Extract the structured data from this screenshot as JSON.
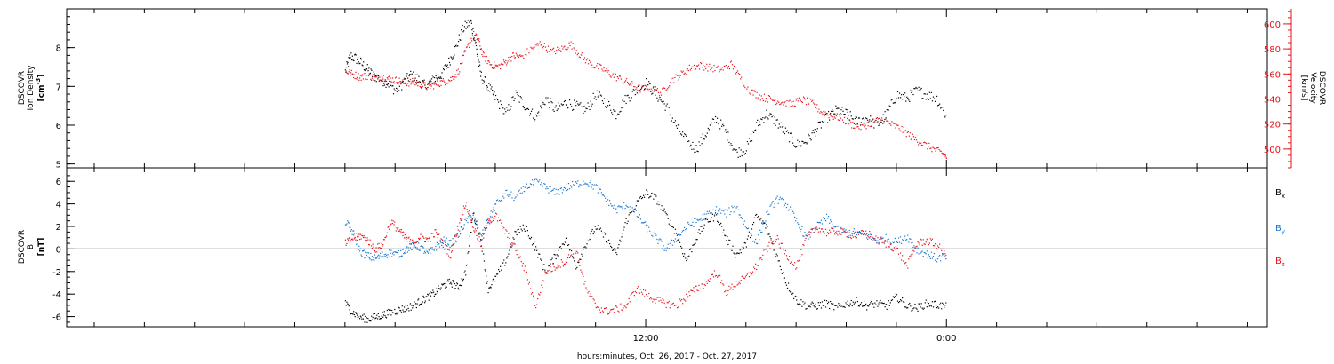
{
  "chart_data": [
    {
      "type": "scatter",
      "panel": "plasma",
      "ylabel_left": {
        "l1": "DSCOVR",
        "l2": "Ion Density",
        "unit": "[cm",
        "unit_sup": "-3",
        "unit_end": "]"
      },
      "ylabel_right": {
        "l1": "DSCOVR",
        "l2": "Velocity",
        "unit": "[km/s]"
      },
      "ylim_left": [
        4.9,
        9.0
      ],
      "yticks_left": [
        5,
        6,
        7,
        8
      ],
      "ylim_right": [
        485,
        612
      ],
      "yticks_right": [
        500,
        520,
        540,
        560,
        580,
        600
      ],
      "colors": {
        "density": "#000000",
        "velocity": "#e8131b"
      },
      "series": [
        {
          "key": "density",
          "axis": "left",
          "x": [
            -24,
            -23.8,
            -23.5,
            -23.2,
            -22.9,
            -22.6,
            -22.3,
            -22,
            -21.7,
            -21.4,
            -21.1,
            -20.8,
            -20.5,
            -20.2,
            -19.9,
            -19.6,
            -19.3,
            -19,
            -18.8,
            -18.6,
            -18.3,
            -18,
            -17.6,
            -17.2,
            -16.8,
            -16.4,
            -16,
            -15.6,
            -15.2,
            -14.8,
            -14.4,
            -14,
            -13.6,
            -13.2,
            -12.8,
            -12.4,
            -12,
            -11.6,
            -11.2,
            -10.8,
            -10.4,
            -10,
            -9.6,
            -9.2,
            -8.8,
            -8.4,
            -8,
            -7.6,
            -7.2,
            -6.8,
            -6.4,
            -6,
            -5.6,
            -5.2,
            -4.8,
            -4.4,
            -4,
            -3.6,
            -3.2,
            -2.8,
            -2.4,
            -2,
            -1.6,
            -1.2,
            -0.8,
            -0.4,
            0
          ],
          "y": [
            7.4,
            7.8,
            7.7,
            7.5,
            7.3,
            7.2,
            7.1,
            6.9,
            7.1,
            7.3,
            7.2,
            7.0,
            7.2,
            7.3,
            7.6,
            8.0,
            8.5,
            8.7,
            8.1,
            7.3,
            7.0,
            6.7,
            6.3,
            6.8,
            6.5,
            6.2,
            6.7,
            6.4,
            6.6,
            6.5,
            6.4,
            6.8,
            6.6,
            6.3,
            6.7,
            6.9,
            7.1,
            6.8,
            6.5,
            6.0,
            5.6,
            5.4,
            5.8,
            6.2,
            5.8,
            5.3,
            5.4,
            6.0,
            6.3,
            6.1,
            5.8,
            5.5,
            5.6,
            5.9,
            6.2,
            6.4,
            6.3,
            6.1,
            6.2,
            6.0,
            6.3,
            6.8,
            6.7,
            6.9,
            6.8,
            6.7,
            6.2
          ]
        },
        {
          "key": "velocity",
          "axis": "right",
          "x": [
            -24,
            -23.7,
            -23.4,
            -23.1,
            -22.8,
            -22.5,
            -22.2,
            -21.9,
            -21.6,
            -21.3,
            -21,
            -20.7,
            -20.4,
            -20.1,
            -19.8,
            -19.5,
            -19.2,
            -18.9,
            -18.7,
            -18.5,
            -18.2,
            -17.9,
            -17.6,
            -17.3,
            -17,
            -16.6,
            -16.2,
            -15.8,
            -15.4,
            -15,
            -14.6,
            -14.2,
            -13.8,
            -13.4,
            -13,
            -12.6,
            -12.2,
            -11.8,
            -11.4,
            -11,
            -10.6,
            -10.2,
            -9.8,
            -9.4,
            -9,
            -8.6,
            -8.2,
            -7.8,
            -7.4,
            -7,
            -6.6,
            -6.2,
            -5.8,
            -5.4,
            -5,
            -4.6,
            -4.2,
            -3.8,
            -3.4,
            -3,
            -2.6,
            -2.2,
            -1.8,
            -1.4,
            -1,
            -0.6,
            -0.2,
            0
          ],
          "y": [
            563,
            560,
            558,
            559,
            557,
            558,
            556,
            555,
            553,
            554,
            552,
            550,
            552,
            554,
            556,
            562,
            578,
            592,
            588,
            575,
            568,
            566,
            570,
            575,
            574,
            580,
            585,
            578,
            580,
            584,
            575,
            568,
            565,
            560,
            556,
            552,
            548,
            550,
            545,
            555,
            560,
            566,
            567,
            565,
            564,
            568,
            556,
            546,
            542,
            540,
            538,
            536,
            540,
            537,
            530,
            527,
            525,
            520,
            518,
            522,
            524,
            520,
            516,
            510,
            505,
            501,
            497,
            494
          ]
        }
      ]
    },
    {
      "type": "scatter",
      "panel": "magnetic",
      "ylabel": {
        "l1": "DSCOVR",
        "l2": "B",
        "unit": "[nT]"
      },
      "ylim": [
        -6.9,
        7.2
      ],
      "yticks": [
        -6,
        -4,
        -2,
        0,
        2,
        4,
        6
      ],
      "zero_line": true,
      "xticks": [
        {
          "t": -12,
          "label": "12:00"
        },
        {
          "t": 0,
          "label": "0:00"
        }
      ],
      "xrange_hours": [
        -35.1,
        12.8
      ],
      "minor_tick_hours": 2,
      "xlabel": "hours:minutes, Oct. 26, 2017 - Oct. 27, 2017",
      "legend": [
        {
          "label": "B",
          "sub": "x",
          "color": "#000000"
        },
        {
          "label": "B",
          "sub": "y",
          "color": "#1a75cf"
        },
        {
          "label": "B",
          "sub": "z",
          "color": "#e8131b"
        }
      ],
      "series": [
        {
          "key": "Bx",
          "color": "#000000",
          "x": [
            -24,
            -23.7,
            -23.4,
            -23.1,
            -22.8,
            -22.5,
            -22.2,
            -21.9,
            -21.6,
            -21.3,
            -21,
            -20.7,
            -20.4,
            -20.1,
            -19.8,
            -19.5,
            -19.2,
            -18.9,
            -18.6,
            -18.3,
            -18,
            -17.6,
            -17.2,
            -16.8,
            -16.4,
            -16,
            -15.6,
            -15.2,
            -14.8,
            -14.4,
            -14,
            -13.6,
            -13.2,
            -12.8,
            -12.4,
            -12,
            -11.6,
            -11.2,
            -10.8,
            -10.4,
            -10,
            -9.6,
            -9.2,
            -8.8,
            -8.4,
            -8,
            -7.6,
            -7.2,
            -6.8,
            -6.4,
            -6,
            -5.6,
            -5.2,
            -4.8,
            -4.4,
            -4,
            -3.6,
            -3.2,
            -2.8,
            -2.4,
            -2,
            -1.6,
            -1.2,
            -0.8,
            -0.4,
            0
          ],
          "y": [
            -4.8,
            -5.6,
            -6.0,
            -6.2,
            -6.0,
            -5.8,
            -5.6,
            -5.4,
            -5.2,
            -5.0,
            -4.6,
            -4.2,
            -3.8,
            -3.2,
            -2.9,
            -3.4,
            -2.0,
            3.2,
            1.0,
            -3.5,
            -2.5,
            -1.0,
            1.5,
            2.0,
            0.0,
            -2.0,
            -0.5,
            1.0,
            -1.5,
            0.5,
            2.0,
            1.0,
            -0.5,
            2.5,
            4.0,
            5.0,
            4.5,
            3.0,
            1.5,
            -1.0,
            1.0,
            2.5,
            3.0,
            1.0,
            -0.5,
            0.5,
            3.0,
            2.0,
            -0.5,
            -3.0,
            -4.5,
            -5.0,
            -5.0,
            -4.8,
            -5.2,
            -4.8,
            -4.6,
            -5.0,
            -4.8,
            -5.0,
            -4.2,
            -5.0,
            -5.2,
            -4.8,
            -4.9,
            -5.1
          ]
        },
        {
          "key": "By",
          "color": "#1a75cf",
          "x": [
            -24,
            -23.7,
            -23.4,
            -23.1,
            -22.8,
            -22.5,
            -22.2,
            -21.9,
            -21.6,
            -21.3,
            -21,
            -20.7,
            -20.4,
            -20.1,
            -19.8,
            -19.5,
            -19.2,
            -18.9,
            -18.6,
            -18.3,
            -18,
            -17.6,
            -17.2,
            -16.8,
            -16.4,
            -16,
            -15.6,
            -15.2,
            -14.8,
            -14.4,
            -14,
            -13.6,
            -13.2,
            -12.8,
            -12.4,
            -12,
            -11.6,
            -11.2,
            -10.8,
            -10.4,
            -10,
            -9.6,
            -9.2,
            -8.8,
            -8.4,
            -8,
            -7.6,
            -7.2,
            -6.8,
            -6.4,
            -6,
            -5.6,
            -5.2,
            -4.8,
            -4.4,
            -4,
            -3.6,
            -3.2,
            -2.8,
            -2.4,
            -2,
            -1.6,
            -1.2,
            -0.8,
            -0.4,
            0
          ],
          "y": [
            2.5,
            1.5,
            -0.2,
            -0.6,
            -0.8,
            -0.5,
            -0.3,
            -0.5,
            0.0,
            0.3,
            0.2,
            -0.4,
            0.2,
            0.8,
            0.5,
            1.2,
            2.5,
            3.0,
            1.0,
            2.5,
            4.0,
            5.0,
            4.6,
            5.5,
            6.0,
            5.5,
            5.0,
            5.5,
            5.8,
            6.0,
            5.5,
            4.5,
            3.5,
            4.0,
            3.2,
            2.0,
            1.0,
            0.0,
            1.0,
            2.0,
            2.5,
            3.0,
            3.5,
            3.2,
            3.8,
            2.0,
            0.5,
            3.0,
            4.5,
            4.0,
            2.5,
            1.0,
            2.0,
            2.8,
            1.8,
            1.5,
            1.5,
            1.2,
            0.8,
            1.0,
            0.6,
            1.2,
            0.0,
            -0.4,
            -0.8,
            -0.6
          ]
        },
        {
          "key": "Bz",
          "color": "#e8131b",
          "x": [
            -24,
            -23.7,
            -23.4,
            -23.1,
            -22.8,
            -22.5,
            -22.2,
            -21.9,
            -21.6,
            -21.3,
            -21,
            -20.7,
            -20.4,
            -20.1,
            -19.8,
            -19.5,
            -19.2,
            -18.9,
            -18.6,
            -18.3,
            -18,
            -17.6,
            -17.2,
            -16.8,
            -16.4,
            -16,
            -15.6,
            -15.2,
            -14.8,
            -14.4,
            -14,
            -13.6,
            -13.2,
            -12.8,
            -12.4,
            -12,
            -11.6,
            -11.2,
            -10.8,
            -10.4,
            -10,
            -9.6,
            -9.2,
            -8.8,
            -8.4,
            -8,
            -7.6,
            -7.2,
            -6.8,
            -6.4,
            -6,
            -5.6,
            -5.2,
            -4.8,
            -4.4,
            -4,
            -3.6,
            -3.2,
            -2.8,
            -2.4,
            -2,
            -1.6,
            -1.2,
            -0.8,
            -0.4,
            0
          ],
          "y": [
            0.5,
            1.0,
            1.2,
            0.8,
            0.0,
            0.5,
            2.5,
            1.8,
            1.0,
            0.5,
            1.2,
            0.8,
            1.5,
            0.5,
            -0.5,
            2.0,
            4.2,
            2.0,
            0.5,
            2.5,
            3.0,
            1.5,
            0.0,
            -2.0,
            -5.0,
            -2.0,
            -1.5,
            -1.0,
            0.0,
            -3.5,
            -5.0,
            -5.5,
            -5.3,
            -5.0,
            -3.5,
            -4.0,
            -4.5,
            -4.8,
            -5.0,
            -4.2,
            -3.5,
            -3.0,
            -2.0,
            -3.8,
            -3.0,
            -2.5,
            -1.5,
            0.0,
            1.0,
            -0.5,
            -1.5,
            1.0,
            2.0,
            1.5,
            1.6,
            1.4,
            1.2,
            1.5,
            0.8,
            0.5,
            0.0,
            -1.5,
            0.5,
            0.8,
            0.4,
            -0.6
          ]
        }
      ]
    }
  ]
}
